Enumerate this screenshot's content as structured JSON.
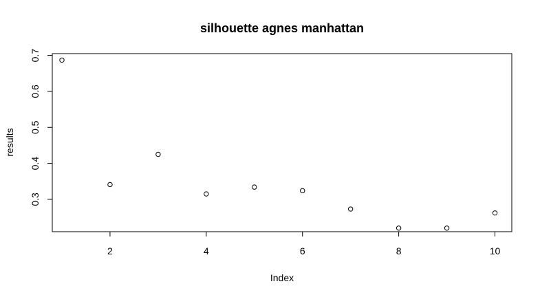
{
  "chart_data": {
    "type": "scatter",
    "title": "silhouette agnes manhattan",
    "xlabel": "Index",
    "ylabel": "results",
    "xlim": [
      0.8,
      10.35
    ],
    "ylim": [
      0.21,
      0.705
    ],
    "x_ticks": [
      2,
      4,
      6,
      8,
      10
    ],
    "x_tick_labels": [
      "2",
      "4",
      "6",
      "8",
      "10"
    ],
    "y_ticks": [
      0.3,
      0.4,
      0.5,
      0.6,
      0.7
    ],
    "y_tick_labels": [
      "0.3",
      "0.4",
      "0.5",
      "0.6",
      "0.7"
    ],
    "grid": false,
    "marker": "open-circle",
    "x": [
      1,
      2,
      3,
      4,
      5,
      6,
      7,
      8,
      9,
      10
    ],
    "y": [
      0.687,
      0.341,
      0.425,
      0.315,
      0.334,
      0.324,
      0.273,
      0.22,
      0.22,
      0.262
    ]
  }
}
